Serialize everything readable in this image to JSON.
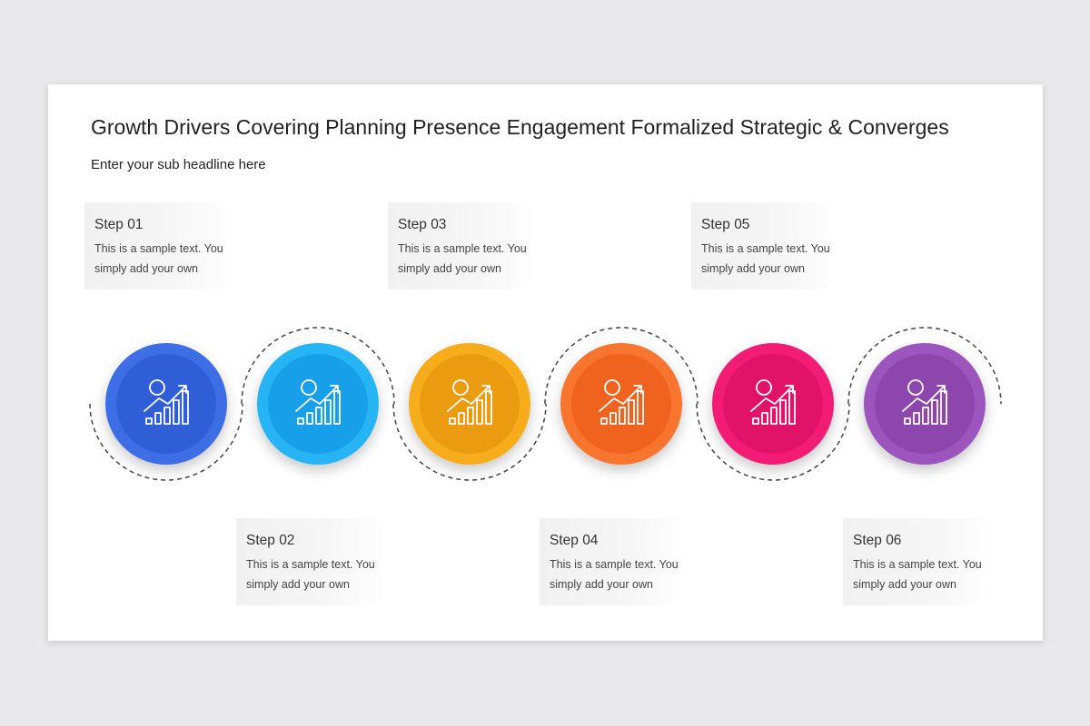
{
  "header": {
    "title": "Growth Drivers Covering Planning Presence Engagement Formalized Strategic & Converges",
    "subtitle": "Enter your sub headline here"
  },
  "steps": [
    {
      "title": "Step 01",
      "text": "This is a sample text. You simply add your own"
    },
    {
      "title": "Step 02",
      "text": "This is a sample text. You simply add your own"
    },
    {
      "title": "Step 03",
      "text": "This is a sample text. You simply add your own"
    },
    {
      "title": "Step 04",
      "text": "This is a sample text. You simply add your own"
    },
    {
      "title": "Step 05",
      "text": "This is a sample text. You simply add your own"
    },
    {
      "title": "Step 06",
      "text": "This is a sample text. You simply add your own"
    }
  ]
}
